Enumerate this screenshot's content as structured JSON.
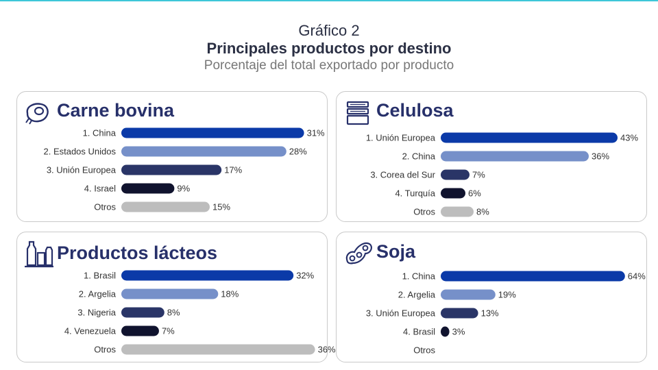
{
  "header": {
    "title": "Gráfico 2",
    "subtitle": "Principales productos por destino",
    "note": "Porcentaje del total exportado por producto"
  },
  "colors": {
    "rank1": "#0b3aa8",
    "rank2": "#7690c9",
    "rank3": "#2a3567",
    "rank4": "#10132e",
    "otros": "#bdbdbd",
    "title_text": "#27306a"
  },
  "chart_data": [
    {
      "type": "bar",
      "orientation": "horizontal",
      "title": "Carne bovina",
      "icon": "steak-icon",
      "categories": [
        "1. China",
        "2. Estados Unidos",
        "3. Unión Europea",
        "4. Israel",
        "Otros"
      ],
      "values": [
        31,
        28,
        17,
        9,
        15
      ],
      "labels": [
        "31%",
        "28%",
        "17%",
        "9%",
        "15%"
      ],
      "unit": "%"
    },
    {
      "type": "bar",
      "orientation": "horizontal",
      "title": "Celulosa",
      "icon": "paper-stack-icon",
      "categories": [
        "1. Unión Europea",
        "2. China",
        "3. Corea del Sur",
        "4. Turquía",
        "Otros"
      ],
      "values": [
        43,
        36,
        7,
        6,
        8
      ],
      "labels": [
        "43%",
        "36%",
        "7%",
        "6%",
        "8%"
      ],
      "unit": "%"
    },
    {
      "type": "bar",
      "orientation": "horizontal",
      "title": "Productos lácteos",
      "icon": "milk-bottles-icon",
      "categories": [
        "1. Brasil",
        "2. Argelia",
        "3. Nigeria",
        "4. Venezuela",
        "Otros"
      ],
      "values": [
        32,
        18,
        8,
        7,
        36
      ],
      "labels": [
        "32%",
        "18%",
        "8%",
        "7%",
        "36%"
      ],
      "unit": "%"
    },
    {
      "type": "bar",
      "orientation": "horizontal",
      "title": "Soja",
      "icon": "soybean-icon",
      "categories": [
        "1. China",
        "2. Argelia",
        "3. Unión Europea",
        "4. Brasil",
        "Otros"
      ],
      "values": [
        64,
        19,
        13,
        3,
        null
      ],
      "labels": [
        "64%",
        "19%",
        "13%",
        "3%",
        ""
      ],
      "unit": "%"
    }
  ]
}
